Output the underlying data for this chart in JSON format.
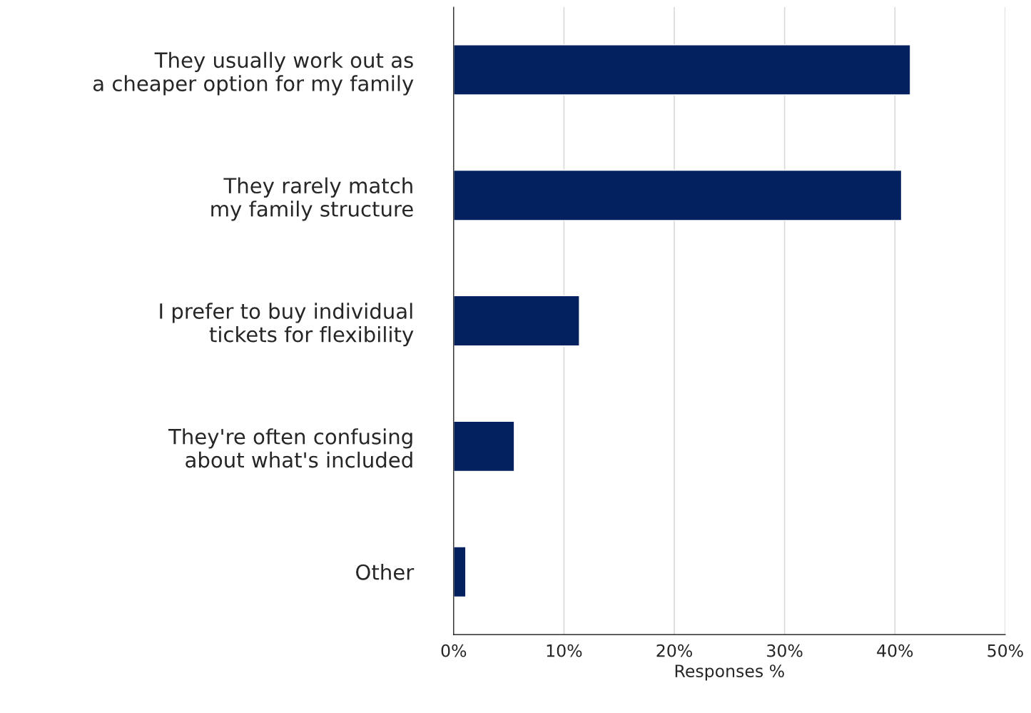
{
  "chart_data": {
    "type": "bar",
    "orientation": "horizontal",
    "xlabel": "Responses %",
    "categories": [
      "They usually work out as\na cheaper option for my family",
      "They rarely match\nmy family structure",
      "I prefer to buy individual\ntickets for flexibility",
      "They're often confusing\nabout what's included",
      "Other"
    ],
    "values": [
      41.4,
      40.6,
      11.4,
      5.5,
      1.1
    ],
    "color": "#03215f",
    "xlim": [
      0,
      50
    ],
    "xticks": [
      {
        "value": 0,
        "label": "0%"
      },
      {
        "value": 10,
        "label": "10%"
      },
      {
        "value": 20,
        "label": "20%"
      },
      {
        "value": 30,
        "label": "30%"
      },
      {
        "value": 40,
        "label": "40%"
      },
      {
        "value": 50,
        "label": "50%"
      }
    ],
    "grid": "x"
  }
}
